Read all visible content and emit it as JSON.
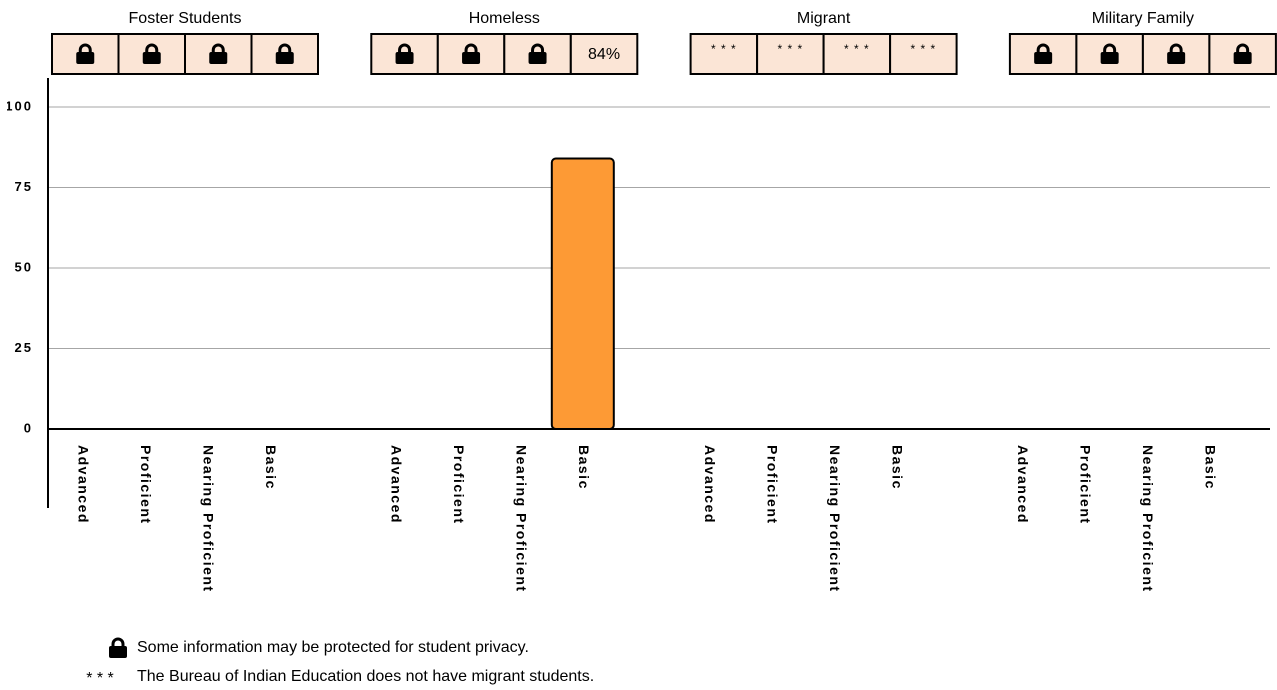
{
  "chart_data": {
    "type": "bar",
    "color": "#fd9a35",
    "cell_color": "#fbe5d6",
    "ylim": [
      0,
      100
    ],
    "yticks": [
      0,
      25,
      50,
      75,
      100
    ],
    "grid": true,
    "groups": [
      {
        "name": "Foster Students",
        "categories": [
          "Advanced",
          "Proficient",
          "Nearing Proficient",
          "Basic"
        ],
        "values": [
          null,
          null,
          null,
          null
        ],
        "value_labels": [
          null,
          null,
          null,
          null
        ]
      },
      {
        "name": "Homeless",
        "categories": [
          "Advanced",
          "Proficient",
          "Nearing Proficient",
          "Basic"
        ],
        "values": [
          null,
          null,
          null,
          84
        ],
        "value_labels": [
          null,
          null,
          null,
          "84%"
        ]
      },
      {
        "name": "Migrant",
        "categories": [
          "Advanced",
          "Proficient",
          "Nearing Proficient",
          "Basic"
        ],
        "values": [
          null,
          null,
          null,
          null
        ],
        "value_labels": [
          "* * *",
          "* * *",
          "* * *",
          "* * *"
        ]
      },
      {
        "name": "Military Family",
        "categories": [
          "Advanced",
          "Proficient",
          "Nearing Proficient",
          "Basic"
        ],
        "values": [
          null,
          null,
          null,
          null
        ],
        "value_labels": [
          null,
          null,
          null,
          null
        ]
      }
    ],
    "notes": [
      {
        "text": "Some information may be protected for student privacy."
      },
      {
        "symbol": "* * *",
        "text": "The Bureau of Indian Education does not have migrant students."
      }
    ]
  }
}
